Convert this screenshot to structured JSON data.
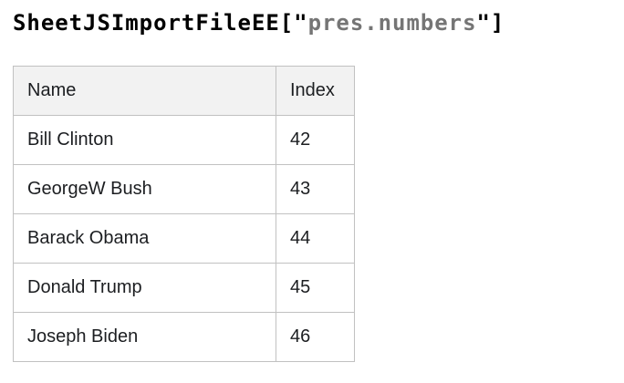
{
  "page": {
    "title_code": {
      "prefix": "SheetJSImportFileEE[\"",
      "sheet_name": "pres.numbers",
      "suffix": "\"]"
    }
  },
  "table": {
    "columns": [
      {
        "label": "Name"
      },
      {
        "label": "Index"
      }
    ],
    "rows": [
      {
        "name": "Bill Clinton",
        "index": "42"
      },
      {
        "name": "GeorgeW Bush",
        "index": "43"
      },
      {
        "name": "Barack Obama",
        "index": "44"
      },
      {
        "name": "Donald Trump",
        "index": "45"
      },
      {
        "name": "Joseph Biden",
        "index": "46"
      }
    ]
  },
  "colors": {
    "title_text": "#000000",
    "title_string": "#757575",
    "table_border": "#c1c1c1",
    "table_header_bg": "#f2f2f2",
    "table_text": "#1c1e21"
  }
}
